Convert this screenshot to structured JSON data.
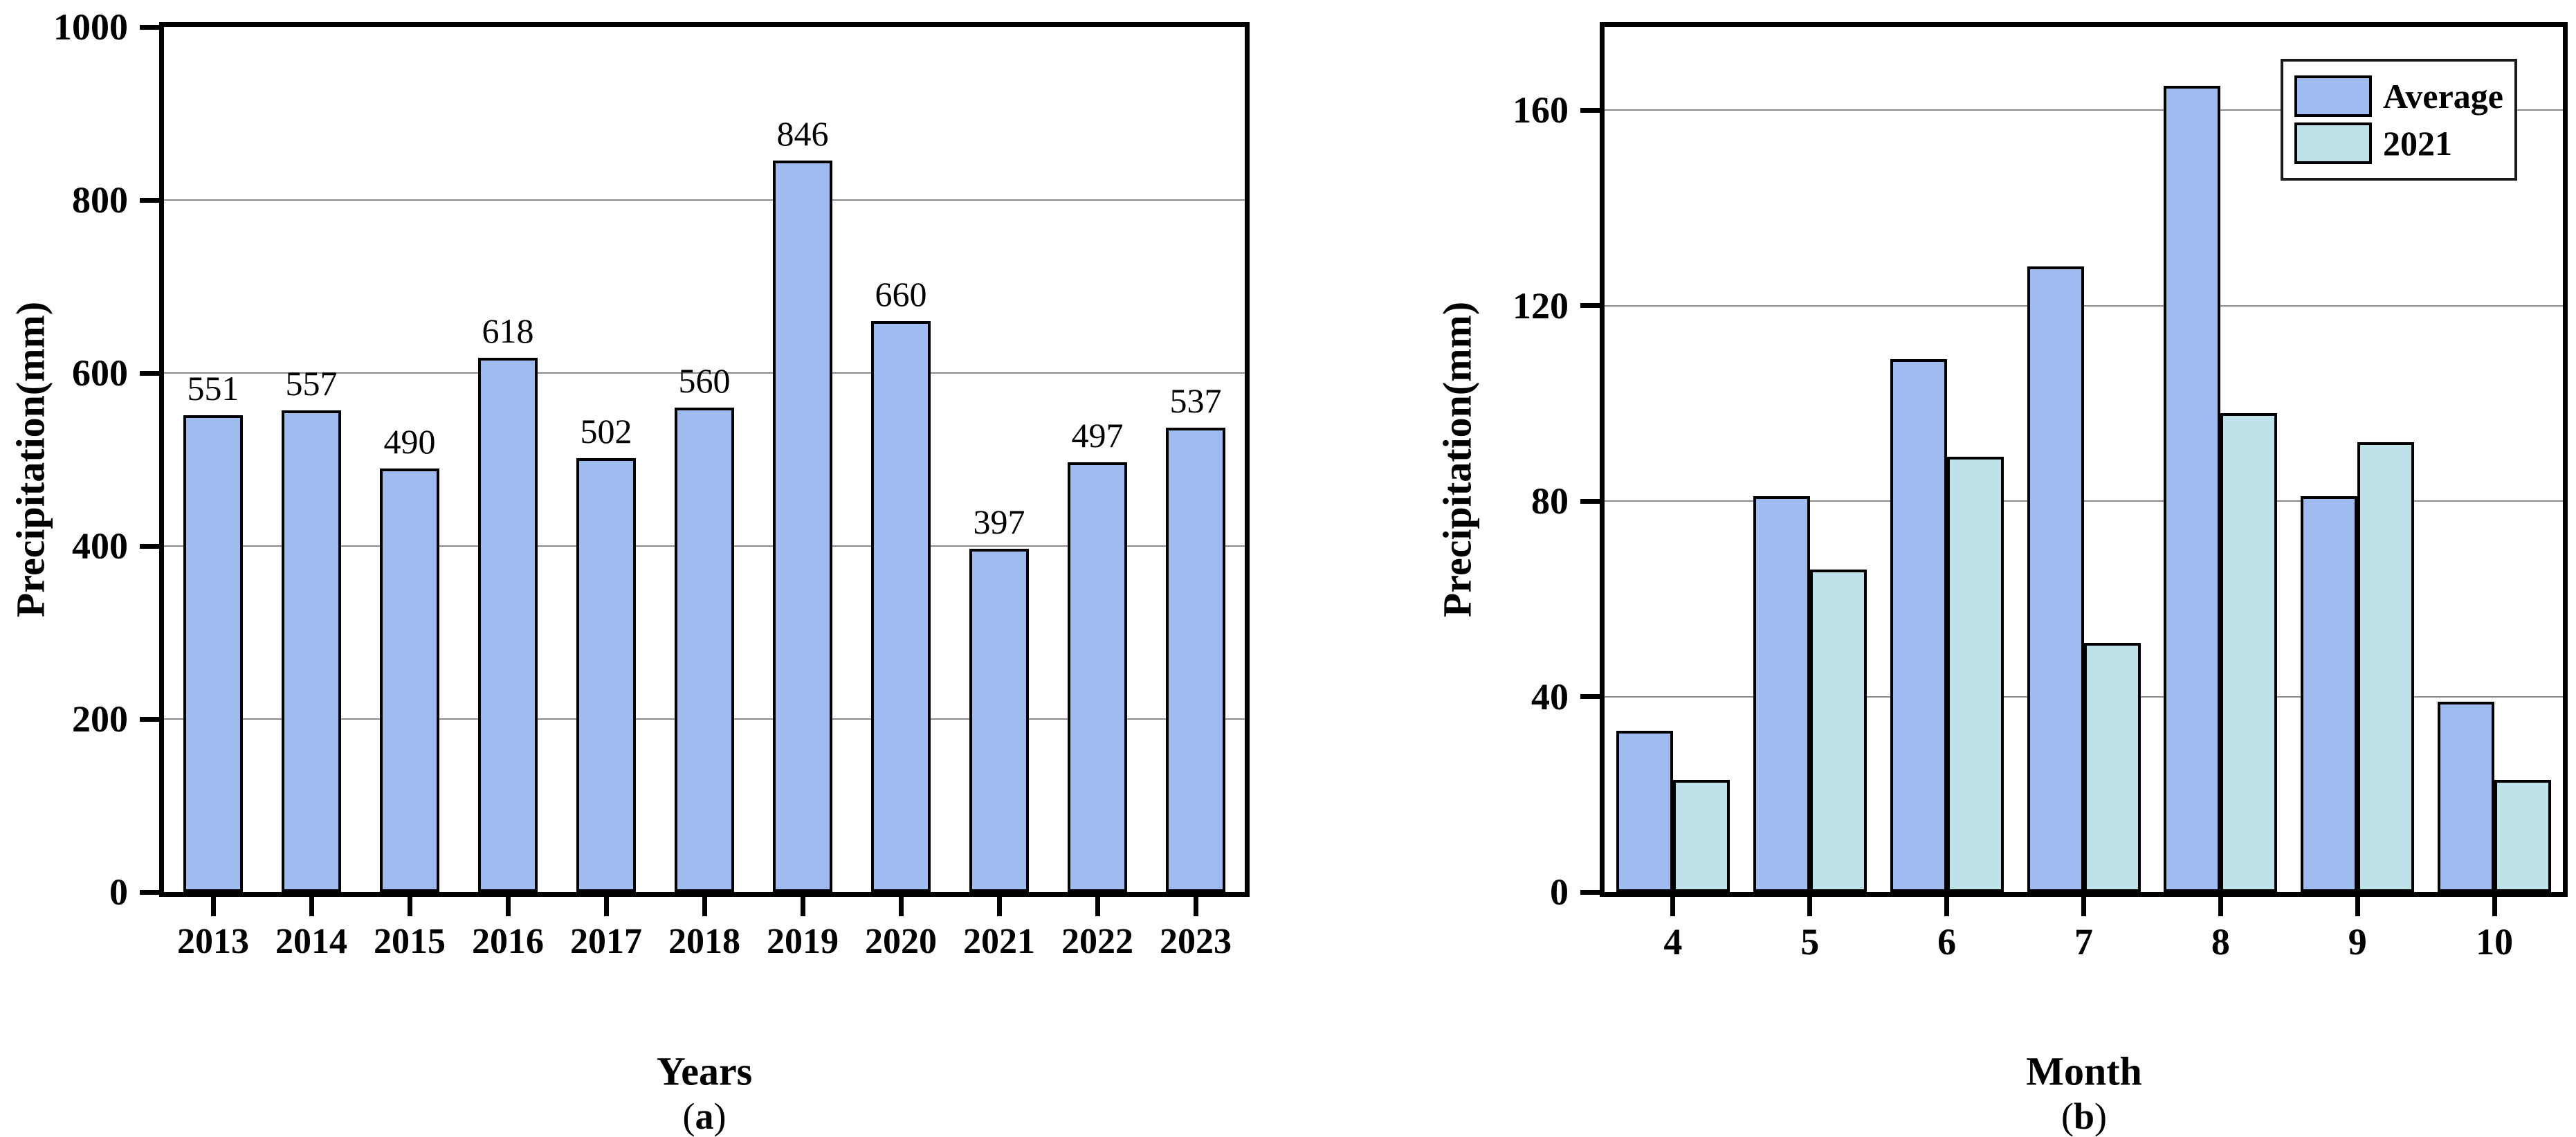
{
  "figure": {
    "panels": [
      {
        "id": "a",
        "caption": {
          "pre": "(",
          "letter": "a",
          "post": ")"
        }
      },
      {
        "id": "b",
        "caption": {
          "pre": "(",
          "letter": "b",
          "post": ")"
        }
      }
    ]
  },
  "chart_data": [
    {
      "type": "bar",
      "categories": [
        "2013",
        "2014",
        "2015",
        "2016",
        "2017",
        "2018",
        "2019",
        "2020",
        "2021",
        "2022",
        "2023"
      ],
      "values": [
        551,
        557,
        490,
        618,
        502,
        560,
        846,
        660,
        397,
        497,
        537
      ],
      "xlabel": "Years",
      "ylabel": "Precipitation(mm)",
      "ylim": [
        0,
        1000
      ],
      "yticks": [
        0,
        200,
        400,
        600,
        800,
        1000
      ],
      "grid": true,
      "value_labels": true,
      "bar_color": "#9EBCF0",
      "bar_border": "#000000",
      "legend": null
    },
    {
      "type": "bar",
      "categories": [
        "4",
        "5",
        "6",
        "7",
        "8",
        "9",
        "10"
      ],
      "series": [
        {
          "name": "Average",
          "color": "#9EBCF0",
          "values": [
            33,
            81,
            109,
            128,
            165,
            81,
            39
          ]
        },
        {
          "name": "2021",
          "color": "#BDE3E8",
          "values": [
            23,
            66,
            89,
            51,
            98,
            92,
            23
          ]
        }
      ],
      "xlabel": "Month",
      "ylabel": "Precipitation(mm)",
      "ylim": [
        0,
        177
      ],
      "yticks": [
        0,
        40,
        80,
        120,
        160
      ],
      "grid": true,
      "value_labels": false,
      "bar_border": "#000000",
      "legend": {
        "position": "top-right",
        "entries": [
          "Average",
          "2021"
        ]
      }
    }
  ],
  "colors": {
    "average_blue": "#9EBCF0",
    "cyan_2021": "#BDE3E8",
    "gridline": "#8C8C8C",
    "axis": "#000000",
    "background": "#FFFFFF"
  }
}
